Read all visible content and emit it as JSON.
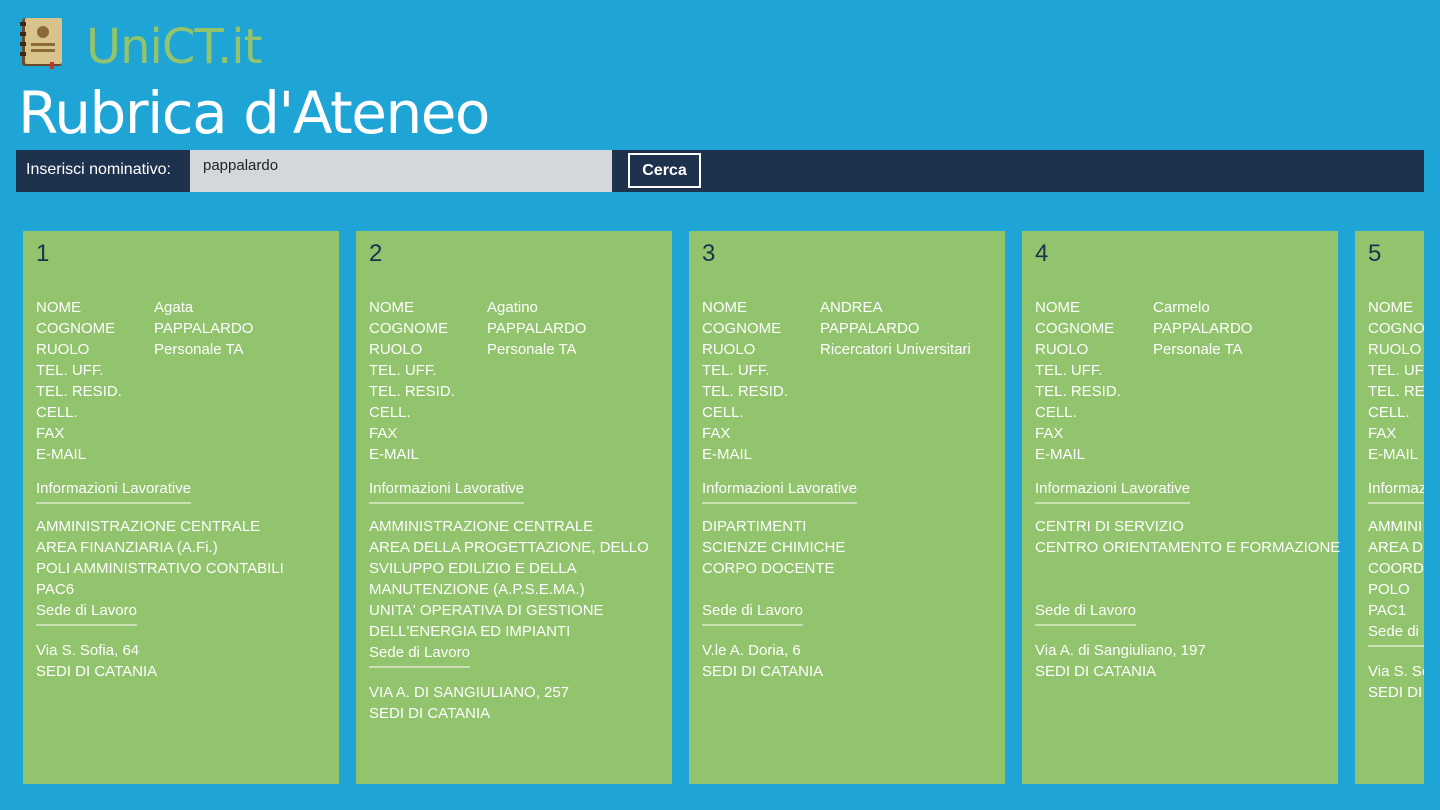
{
  "app": {
    "name": "UniCT.it",
    "logo_icon": "address-book-icon"
  },
  "page_title": "Rubrica d'Ateneo",
  "search": {
    "label": "Inserisci nominativo:",
    "value": "pappalardo",
    "button_label": "Cerca"
  },
  "field_labels": [
    "NOME",
    "COGNOME",
    "RUOLO",
    "TEL. UFF.",
    "TEL. RESID.",
    "CELL.",
    "FAX",
    "E-MAIL"
  ],
  "section_work_info": "Informazioni Lavorative",
  "section_workplace": "Sede di Lavoro",
  "results": [
    {
      "index": "1",
      "values": [
        "Agata",
        "PAPPALARDO",
        "Personale TA",
        "",
        "",
        "",
        "",
        ""
      ],
      "work_lines": [
        "AMMINISTRAZIONE CENTRALE",
        "AREA FINANZIARIA (A.Fi.)",
        "POLI AMMINISTRATIVO CONTABILI",
        "PAC6"
      ],
      "address_lines": [
        "Via S. Sofia, 64",
        "SEDI DI CATANIA"
      ]
    },
    {
      "index": "2",
      "values": [
        "Agatino",
        "PAPPALARDO",
        "Personale TA",
        "",
        "",
        "",
        "",
        ""
      ],
      "work_lines": [
        "AMMINISTRAZIONE CENTRALE",
        "AREA DELLA PROGETTAZIONE, DELLO",
        "SVILUPPO EDILIZIO E DELLA",
        "MANUTENZIONE (A.P.S.E.MA.)",
        "UNITA' OPERATIVA DI GESTIONE",
        "DELL'ENERGIA ED IMPIANTI"
      ],
      "address_lines": [
        "VIA A. DI SANGIULIANO, 257",
        "SEDI DI CATANIA"
      ]
    },
    {
      "index": "3",
      "values": [
        "ANDREA",
        "PAPPALARDO",
        "Ricercatori Universitari",
        "",
        "",
        "",
        "",
        ""
      ],
      "work_lines": [
        "DIPARTIMENTI",
        "SCIENZE CHIMICHE",
        "CORPO DOCENTE",
        ""
      ],
      "address_lines": [
        "V.le A. Doria, 6",
        "SEDI DI CATANIA"
      ]
    },
    {
      "index": "4",
      "values": [
        "Carmelo",
        "PAPPALARDO",
        "Personale TA",
        "",
        "",
        "",
        "",
        ""
      ],
      "work_lines": [
        "CENTRI DI SERVIZIO",
        "CENTRO ORIENTAMENTO E FORMAZIONE",
        "",
        ""
      ],
      "address_lines": [
        "Via A. di Sangiuliano, 197",
        "SEDI DI CATANIA"
      ]
    },
    {
      "index": "5",
      "values": [
        "",
        "",
        "",
        "",
        "",
        "",
        "",
        ""
      ],
      "work_lines": [
        "AMMINI",
        "AREA DE",
        "COORDI",
        "POLO",
        "PAC1"
      ],
      "address_lines": [
        "Via S. Sc",
        "SEDI DI"
      ]
    }
  ]
}
